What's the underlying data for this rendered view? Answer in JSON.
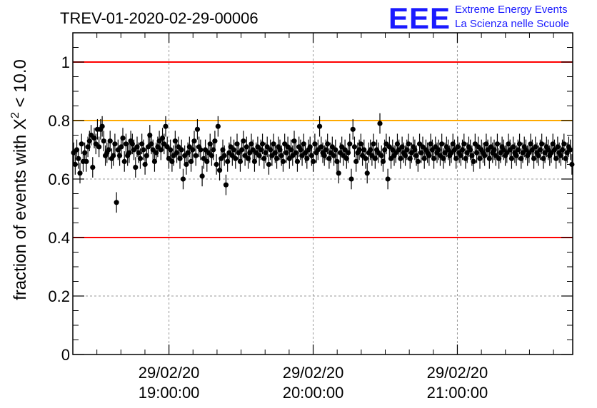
{
  "chart_data": {
    "type": "scatter",
    "title": "TREV-01-2020-02-29-00006",
    "ylabel_prefix": "fraction of events with ",
    "ylabel_symbol": "X",
    "ylabel_sup": "2",
    "ylabel_suffix": " < 10.0",
    "xlabel": "",
    "ylim": [
      0,
      1.1
    ],
    "xlim": [
      "18:20",
      "21:48"
    ],
    "yticks": [
      0,
      0.2,
      0.4,
      0.6,
      0.8,
      1
    ],
    "ytick_labels": [
      "0",
      "0.2",
      "0.4",
      "0.6",
      "0.8",
      "1"
    ],
    "xticks": [
      {
        "time": "19:00",
        "date": "29/02/20",
        "clock": "19:00:00"
      },
      {
        "time": "20:00",
        "date": "29/02/20",
        "clock": "20:00:00"
      },
      {
        "time": "21:00",
        "date": "29/02/20",
        "clock": "21:00:00"
      }
    ],
    "grid": true,
    "reference_lines": [
      {
        "y": 1.0,
        "color": "#ff0000"
      },
      {
        "y": 0.8,
        "color": "#ffaa00"
      },
      {
        "y": 0.4,
        "color": "#ff0000"
      }
    ],
    "marker_color": "#000000",
    "error": 0.035,
    "series": [
      {
        "x_start": "18:20",
        "x_end": "21:48",
        "values": [
          0.69,
          0.65,
          0.7,
          0.67,
          0.62,
          0.72,
          0.66,
          0.69,
          0.66,
          0.71,
          0.73,
          0.75,
          0.64,
          0.74,
          0.72,
          0.77,
          0.71,
          0.7,
          0.75,
          0.73,
          0.68,
          0.69,
          0.7,
          0.73,
          0.67,
          0.68,
          0.72,
          0.74,
          0.7,
          0.68,
          0.71,
          0.74,
          0.66,
          0.72,
          0.68,
          0.69,
          0.73,
          0.72,
          0.7,
          0.64,
          0.71,
          0.69,
          0.67,
          0.72,
          0.7,
          0.73,
          0.68,
          0.71,
          0.75,
          0.72,
          0.7,
          0.66,
          0.69,
          0.71,
          0.73,
          0.7,
          0.74,
          0.72,
          0.69,
          0.71,
          0.67,
          0.7,
          0.66,
          0.68,
          0.73,
          0.69,
          0.71,
          0.67,
          0.7,
          0.72,
          0.68,
          0.65,
          0.69,
          0.71,
          0.66,
          0.7,
          0.73,
          0.68,
          0.69,
          0.71,
          0.7,
          0.72,
          0.67,
          0.7,
          0.66,
          0.69,
          0.72,
          0.68,
          0.7,
          0.73,
          0.65,
          0.69,
          0.71,
          0.67,
          0.7,
          0.68,
          0.72,
          0.66,
          0.69,
          0.71,
          0.68,
          0.7,
          0.67,
          0.72,
          0.69,
          0.66,
          0.7,
          0.73,
          0.68,
          0.71,
          0.67,
          0.69,
          0.72,
          0.7,
          0.66,
          0.69,
          0.71,
          0.68,
          0.7,
          0.72,
          0.67,
          0.69,
          0.71,
          0.65,
          0.7,
          0.68,
          0.72,
          0.69,
          0.67,
          0.71,
          0.7,
          0.68,
          0.66,
          0.72,
          0.69,
          0.71,
          0.67,
          0.7,
          0.68,
          0.73,
          0.69,
          0.66,
          0.71,
          0.7,
          0.68,
          0.72,
          0.69,
          0.67,
          0.7,
          0.71,
          0.68,
          0.66,
          0.72,
          0.69,
          0.7,
          0.67,
          0.71,
          0.69,
          0.68,
          0.7,
          0.72,
          0.67,
          0.69,
          0.71,
          0.68,
          0.7,
          0.66,
          0.72,
          0.69,
          0.71,
          0.68,
          0.7,
          0.67,
          0.69,
          0.72,
          0.7,
          0.68,
          0.71,
          0.66,
          0.69,
          0.7,
          0.72,
          0.68,
          0.7,
          0.67,
          0.71,
          0.69,
          0.7,
          0.68,
          0.72,
          0.67,
          0.7,
          0.69,
          0.71,
          0.68,
          0.66,
          0.7,
          0.72,
          0.69,
          0.71,
          0.67,
          0.7,
          0.68,
          0.69,
          0.72,
          0.7,
          0.67,
          0.71,
          0.69,
          0.68,
          0.7,
          0.72,
          0.67,
          0.69,
          0.71,
          0.7,
          0.68,
          0.66,
          0.72,
          0.69,
          0.71,
          0.67,
          0.7,
          0.69,
          0.68,
          0.72,
          0.7,
          0.67,
          0.71,
          0.69,
          0.7,
          0.68,
          0.72,
          0.67,
          0.69,
          0.71,
          0.7,
          0.68,
          0.69,
          0.72,
          0.7,
          0.67,
          0.71,
          0.69,
          0.68,
          0.7,
          0.72,
          0.67,
          0.69,
          0.71,
          0.7,
          0.68,
          0.66,
          0.72,
          0.69,
          0.71,
          0.67,
          0.7,
          0.69,
          0.68,
          0.72,
          0.7,
          0.67,
          0.71,
          0.69,
          0.7,
          0.68,
          0.72,
          0.67,
          0.69,
          0.71,
          0.7,
          0.68,
          0.69,
          0.72,
          0.7,
          0.67,
          0.71,
          0.69,
          0.68,
          0.7,
          0.72,
          0.67,
          0.69,
          0.71,
          0.7,
          0.68,
          0.69,
          0.72,
          0.7,
          0.67,
          0.71,
          0.69,
          0.68,
          0.7,
          0.72,
          0.67,
          0.69,
          0.71,
          0.7,
          0.68,
          0.69,
          0.72,
          0.7,
          0.67,
          0.71,
          0.69,
          0.68,
          0.7,
          0.72,
          0.67,
          0.69,
          0.71,
          0.7,
          0.65
        ]
      }
    ],
    "overrides": [
      {
        "index": 5,
        "value": 0.72
      },
      {
        "index": 12,
        "value": 0.64
      },
      {
        "index": 17,
        "value": 0.77
      },
      {
        "index": 18,
        "value": 0.78
      },
      {
        "index": 27,
        "value": 0.52
      },
      {
        "index": 39,
        "value": 0.64
      },
      {
        "index": 45,
        "value": 0.65
      },
      {
        "index": 58,
        "value": 0.78
      },
      {
        "index": 69,
        "value": 0.6
      },
      {
        "index": 78,
        "value": 0.77
      },
      {
        "index": 81,
        "value": 0.61
      },
      {
        "index": 91,
        "value": 0.78
      },
      {
        "index": 92,
        "value": 0.63
      },
      {
        "index": 96,
        "value": 0.58
      },
      {
        "index": 155,
        "value": 0.78
      },
      {
        "index": 167,
        "value": 0.62
      },
      {
        "index": 175,
        "value": 0.6
      },
      {
        "index": 176,
        "value": 0.77
      },
      {
        "index": 185,
        "value": 0.62
      },
      {
        "index": 193,
        "value": 0.79
      },
      {
        "index": 198,
        "value": 0.6
      }
    ]
  },
  "logo": {
    "letters": "EEE",
    "line1": "Extreme Energy Events",
    "line2": "La Scienza nelle Scuole",
    "color": "#1a1aff"
  }
}
